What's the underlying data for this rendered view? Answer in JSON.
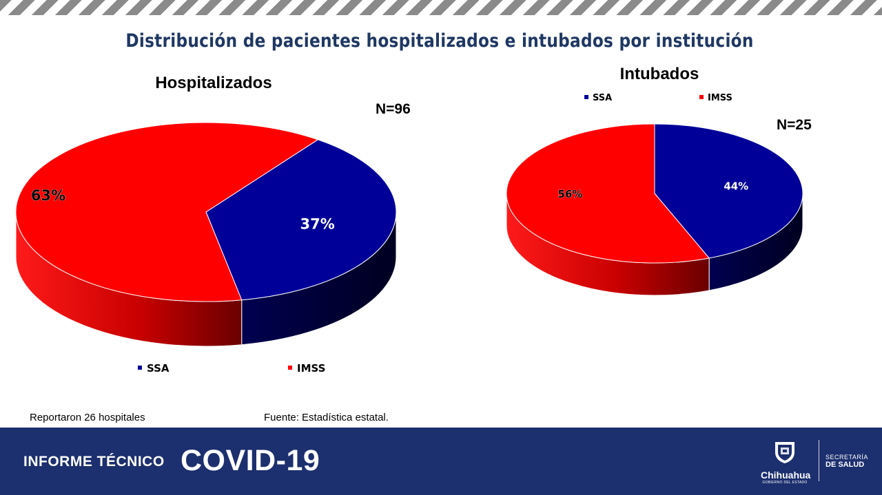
{
  "header": {
    "title": "Distribución de pacientes hospitalizados e intubados por institución"
  },
  "chart_data": [
    {
      "type": "pie",
      "title": "Hospitalizados",
      "n_label": "N=96",
      "categories": [
        "SSA",
        "IMSS"
      ],
      "values": [
        37,
        63
      ],
      "labels": [
        "37%",
        "63%"
      ],
      "colors": [
        "#000099",
        "#ff0000"
      ],
      "legend_position": "bottom",
      "legend": [
        "SSA",
        "IMSS"
      ]
    },
    {
      "type": "pie",
      "title": "Intubados",
      "n_label": "N=25",
      "categories": [
        "SSA",
        "IMSS"
      ],
      "values": [
        44,
        56
      ],
      "labels": [
        "44%",
        "56%"
      ],
      "colors": [
        "#000099",
        "#ff0000"
      ],
      "legend_position": "top",
      "legend": [
        "SSA",
        "IMSS"
      ]
    }
  ],
  "footer": {
    "note_left": "Reportaron 26 hospitales",
    "note_right": "Fuente: Estadística estatal.",
    "report_label": "INFORME TÉCNICO",
    "covid_label": "COVID-19",
    "logo_state_name": "Chihuahua",
    "logo_state_sub": "GOBIERNO DEL ESTADO",
    "logo_dept_top": "SECRETARÍA",
    "logo_dept_bottom": "DE SALUD"
  }
}
